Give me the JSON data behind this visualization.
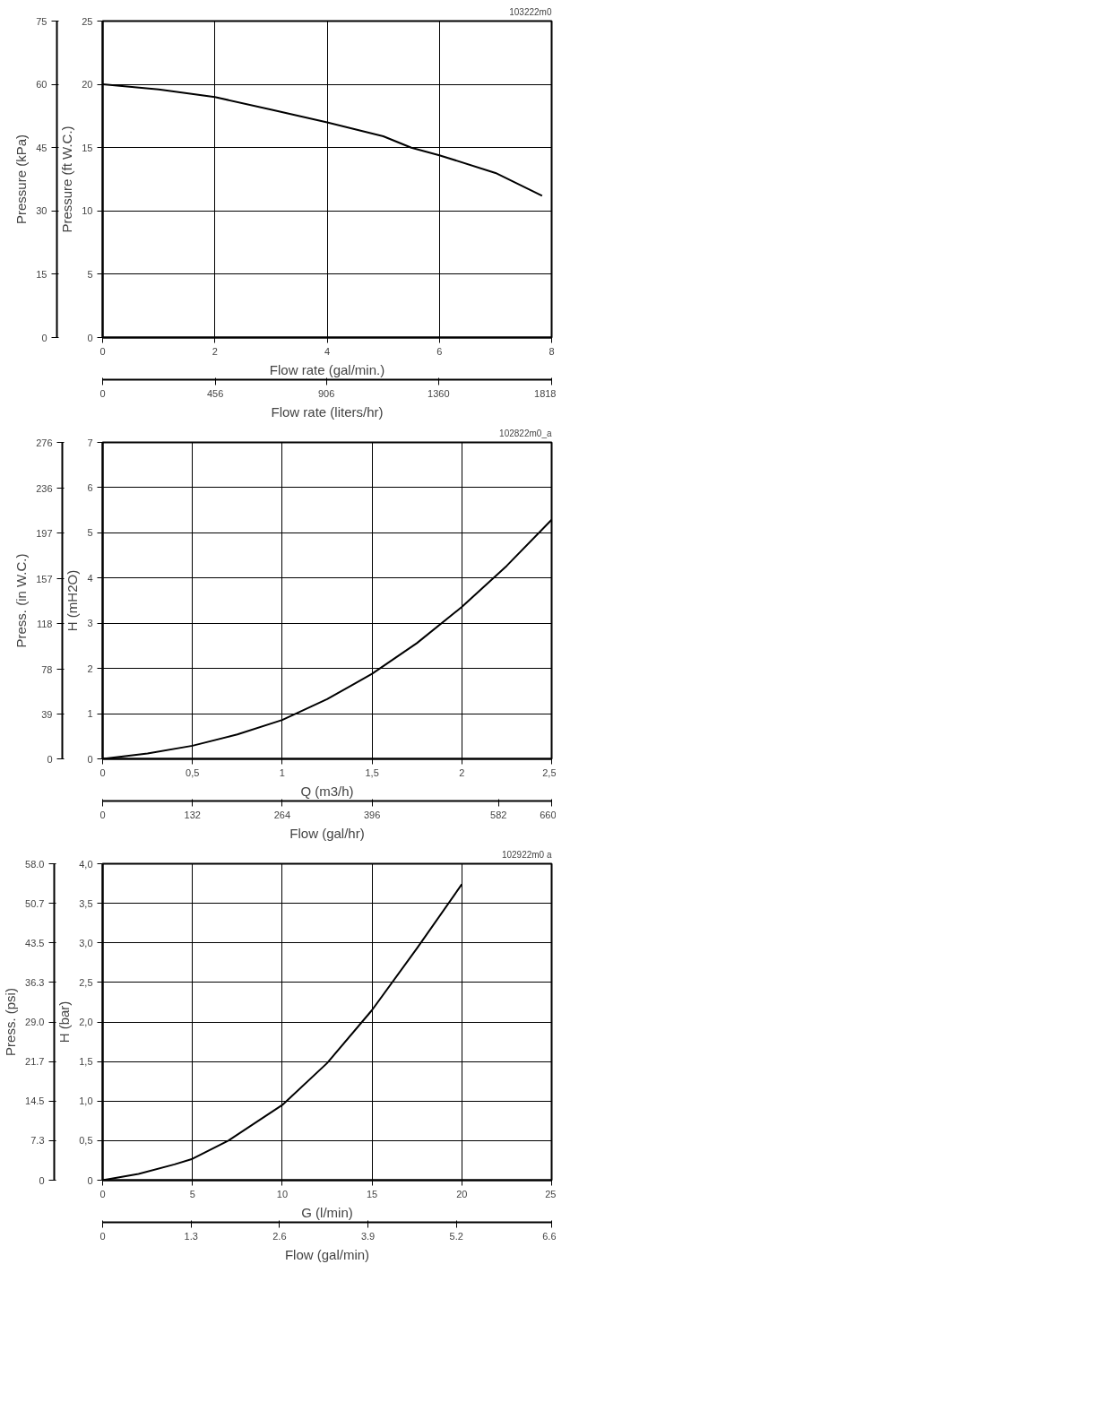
{
  "chart_data": [
    {
      "type": "line",
      "xlabel": "Flow rate (gal/min.)",
      "ylabel": "Pressure (ft W.C.)",
      "y2label": "Pressure (kPa)",
      "x2label": "Flow rate (liters/hr)",
      "annotations": [
        "103222m0"
      ],
      "x": [
        0,
        1,
        2,
        3,
        4,
        5,
        5.5,
        6,
        7,
        7.83
      ],
      "series": [
        {
          "color": "#000000",
          "values": [
            20,
            19.6,
            19.0,
            18.0,
            17.0,
            15.9,
            15.0,
            14.4,
            13.0,
            11.2
          ]
        }
      ],
      "xlim": [
        0,
        8
      ],
      "xticks": [
        0,
        2,
        4,
        6,
        8
      ],
      "ylim": [
        0,
        25
      ],
      "yticks": [
        0,
        5,
        10,
        15,
        20,
        25
      ],
      "y2lim": [
        0,
        75
      ],
      "y2ticks": [
        0,
        15,
        30,
        45,
        60,
        75
      ],
      "x2lim": [
        0,
        1818
      ],
      "x2ticks": [
        0,
        456,
        906,
        1360,
        1818
      ],
      "grid": true
    },
    {
      "type": "line",
      "xlabel": "Q (m3/h)",
      "ylabel": "H (mH2O)",
      "y2label": "Press. (in W.C.)",
      "x2label": "Flow (gal/hr)",
      "annotations": [
        "102822m0_a"
      ],
      "x": [
        0,
        0.25,
        0.5,
        0.75,
        1.0,
        1.25,
        1.5,
        1.75,
        2.0,
        2.25,
        2.5
      ],
      "series": [
        {
          "color": "#000000",
          "values": [
            0,
            0.12,
            0.29,
            0.54,
            0.86,
            1.32,
            1.88,
            2.56,
            3.36,
            4.27,
            5.29
          ]
        }
      ],
      "xlim": [
        0,
        2.5
      ],
      "xticks": [
        0,
        {
          "value": 0.5,
          "label": "0,5"
        },
        1,
        {
          "value": 1.5,
          "label": "1,5"
        },
        2,
        {
          "value": 2.5,
          "label": "2,5"
        }
      ],
      "ylim": [
        0,
        7
      ],
      "yticks": [
        0,
        1,
        2,
        3,
        4,
        5,
        6,
        7
      ],
      "y2lim": [
        0,
        276
      ],
      "y2ticks": [
        0,
        39,
        78,
        118,
        157,
        197,
        236,
        276
      ],
      "x2lim": [
        0,
        660
      ],
      "x2ticks": [
        0,
        132,
        264,
        396,
        582,
        660
      ],
      "grid": true
    },
    {
      "type": "line",
      "xlabel": "G (l/min)",
      "ylabel": "H (bar)",
      "y2label": "Press. (psi)",
      "x2label": "Flow (gal/min)",
      "annotations": [
        "102922m0 a"
      ],
      "x": [
        0,
        2,
        4,
        5,
        7,
        10,
        12.5,
        15,
        17.5,
        20
      ],
      "series": [
        {
          "color": "#000000",
          "values": [
            0,
            0.08,
            0.2,
            0.27,
            0.5,
            0.95,
            1.48,
            2.15,
            2.93,
            3.74
          ]
        }
      ],
      "xlim": [
        0,
        25
      ],
      "xticks": [
        0,
        5,
        10,
        15,
        20,
        25
      ],
      "ylim": [
        0,
        4
      ],
      "yticks": [
        {
          "value": 0,
          "label": "0"
        },
        {
          "value": 0.5,
          "label": "0,5"
        },
        {
          "value": 1,
          "label": "1,0"
        },
        {
          "value": 1.5,
          "label": "1,5"
        },
        {
          "value": 2,
          "label": "2,0"
        },
        {
          "value": 2.5,
          "label": "2,5"
        },
        {
          "value": 3,
          "label": "3,0"
        },
        {
          "value": 3.5,
          "label": "3,5"
        },
        {
          "value": 4,
          "label": "4,0"
        }
      ],
      "y2lim": [
        0,
        58
      ],
      "y2ticks": [
        0,
        7.3,
        14.5,
        21.7,
        {
          "value": 29,
          "label": "29.0"
        },
        36.3,
        43.5,
        50.7,
        {
          "value": 58,
          "label": "58.0"
        }
      ],
      "x2lim": [
        0,
        6.6
      ],
      "x2ticks": [
        0,
        1.3,
        2.6,
        3.9,
        5.2,
        6.6
      ],
      "grid": true
    }
  ]
}
